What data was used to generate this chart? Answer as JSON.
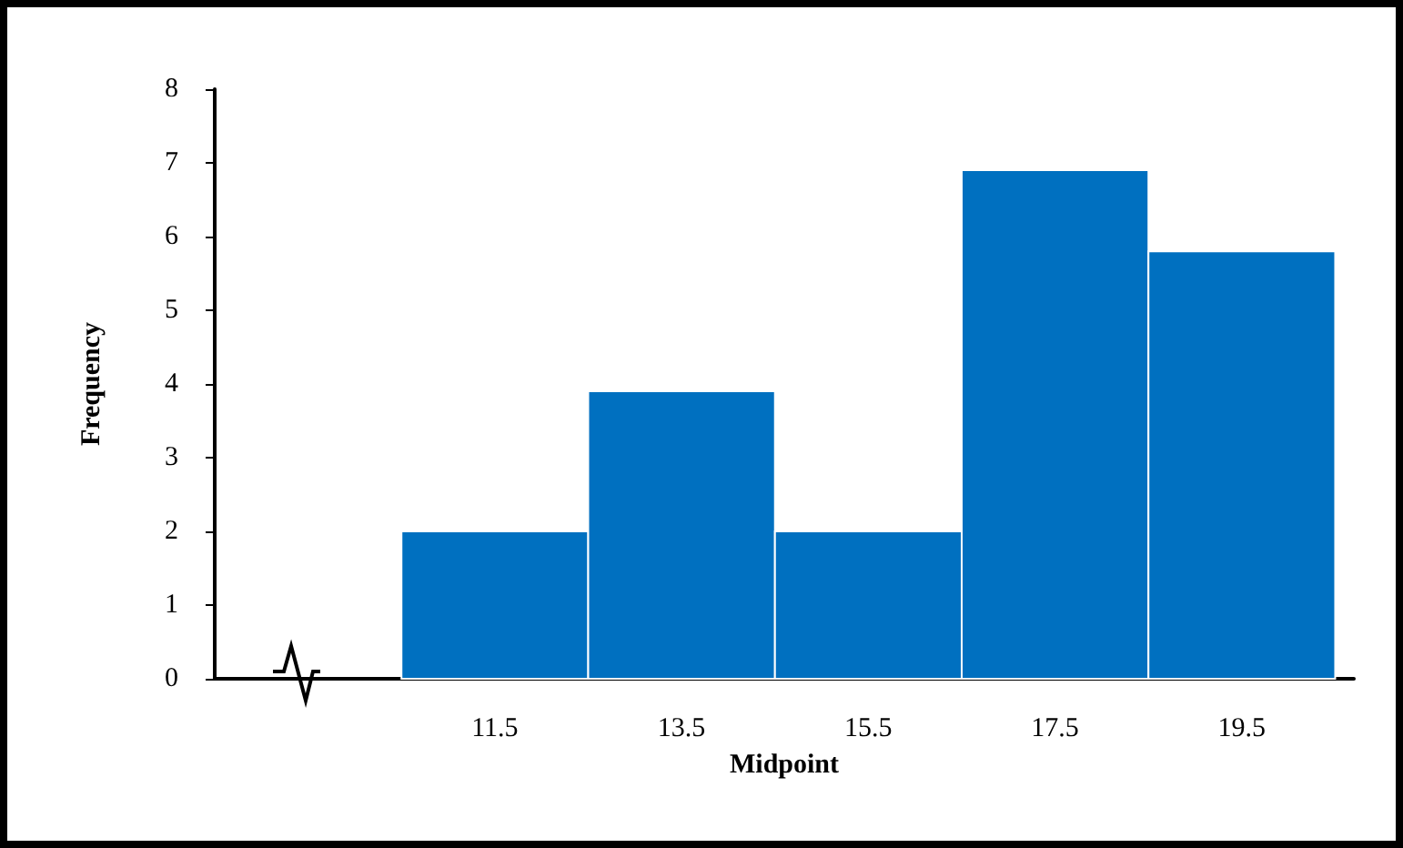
{
  "chart_data": {
    "type": "histogram",
    "xlabel": "Midpoint",
    "ylabel": "Frequency",
    "bins": [
      10.5,
      12.5,
      14.5,
      16.5,
      18.5,
      20.5
    ],
    "values": [
      2,
      3.9,
      2,
      6.9,
      5.8
    ],
    "color": "#0070c0",
    "xlim": [
      8.5,
      20.7
    ],
    "xticks": [
      11.5,
      13.5,
      15.5,
      17.5,
      19.5
    ],
    "ylim": [
      0,
      8
    ],
    "yticks": [
      0,
      1,
      2,
      3,
      4,
      5,
      6,
      7,
      8
    ],
    "grid": false
  }
}
